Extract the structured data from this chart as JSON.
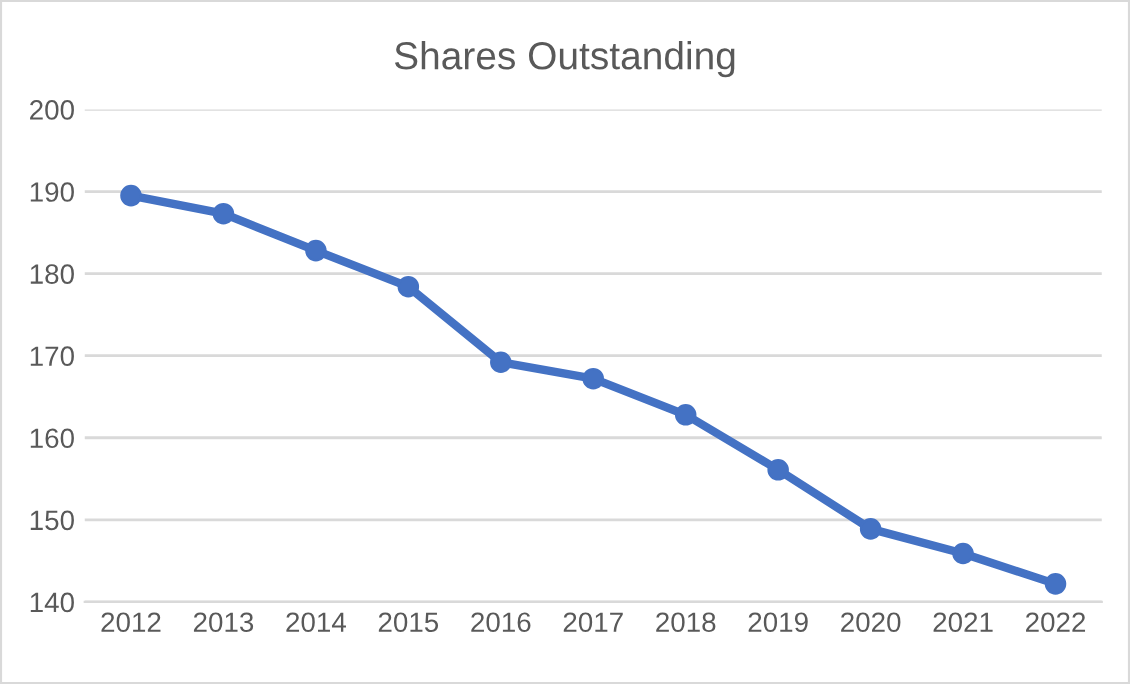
{
  "chart_data": {
    "type": "line",
    "title": "Shares Outstanding",
    "categories": [
      "2012",
      "2013",
      "2014",
      "2015",
      "2016",
      "2017",
      "2018",
      "2019",
      "2020",
      "2021",
      "2022"
    ],
    "series": [
      {
        "color": "#4472c4",
        "values": [
          189.5,
          187.3,
          182.8,
          178.4,
          169.2,
          167.2,
          162.8,
          156.1,
          148.9,
          145.9,
          142.2
        ]
      }
    ],
    "ylim": [
      140,
      200
    ],
    "yticks": [
      140,
      150,
      160,
      170,
      180,
      190,
      200
    ],
    "grid": "y",
    "marker": "circle",
    "line_style": "solid"
  }
}
